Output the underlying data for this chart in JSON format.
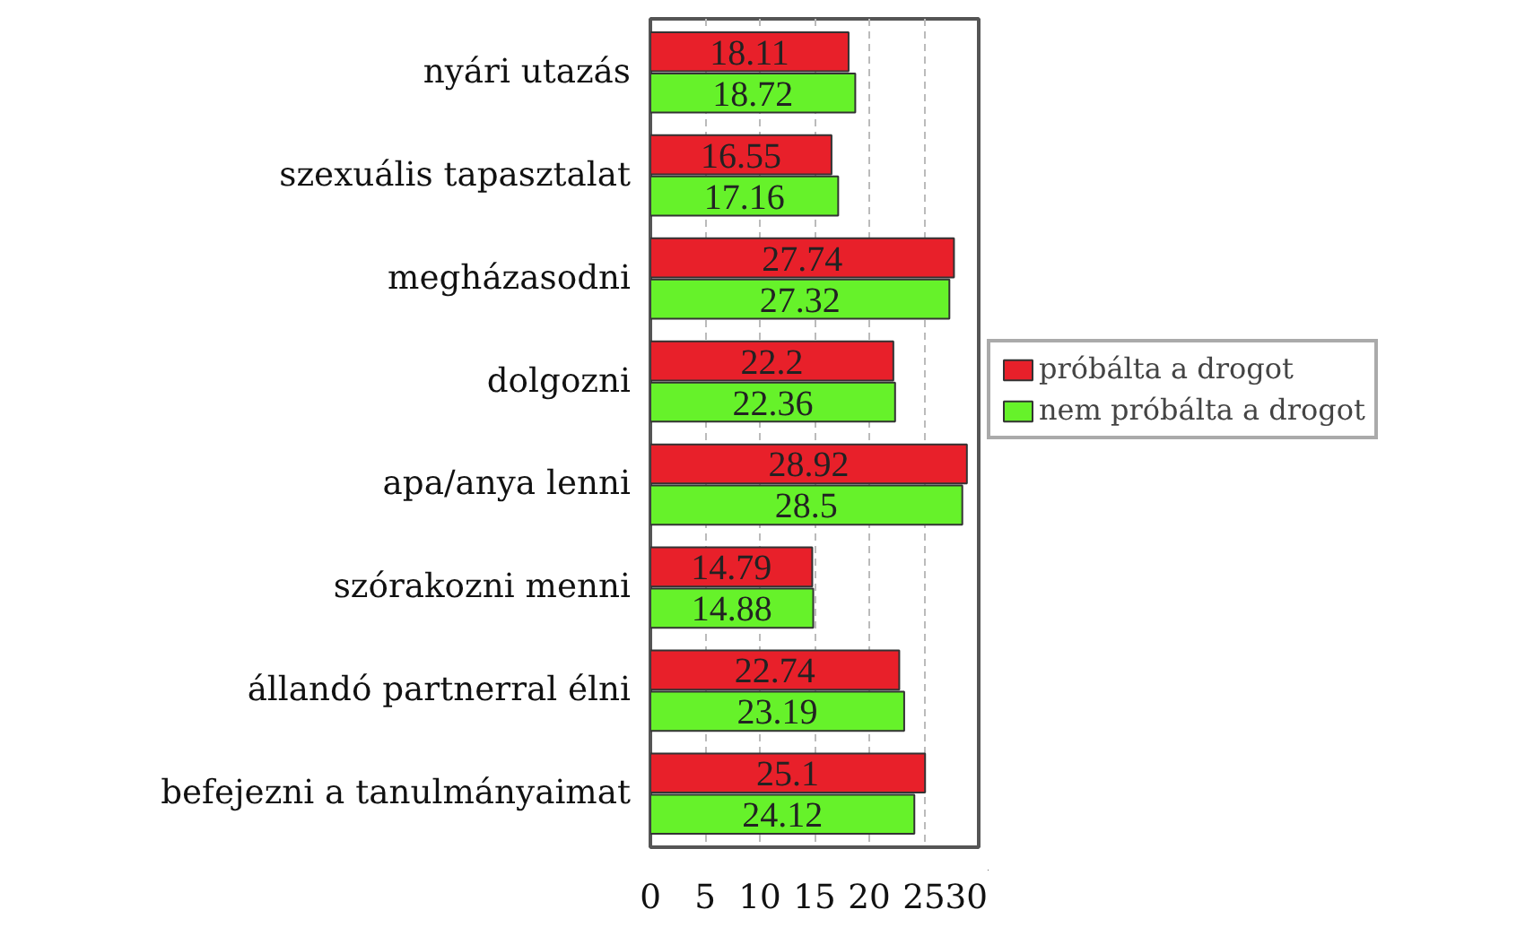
{
  "chart_data": {
    "type": "bar",
    "orientation": "horizontal",
    "categories": [
      "nyári utazás",
      "szexuális tapasztalat",
      "megházasodni",
      "dolgozni",
      "apa/anya lenni",
      "szórakozni menni",
      "állandó partnerral élni",
      "befejezni a tanulmányaimat"
    ],
    "series": [
      {
        "name": "próbálta a drogot",
        "color": "#e8202a",
        "values": [
          18.11,
          16.55,
          27.74,
          22.2,
          28.92,
          14.79,
          22.74,
          25.1
        ]
      },
      {
        "name": "nem próbálta a drogot",
        "color": "#66f22a",
        "values": [
          18.72,
          17.16,
          27.32,
          22.36,
          28.5,
          14.88,
          23.19,
          24.12
        ]
      }
    ],
    "xlim": [
      0,
      30
    ],
    "xticks": [
      0,
      5,
      10,
      15,
      20,
      25,
      30
    ],
    "grid": "x",
    "legend": "right",
    "data_labels": true
  }
}
